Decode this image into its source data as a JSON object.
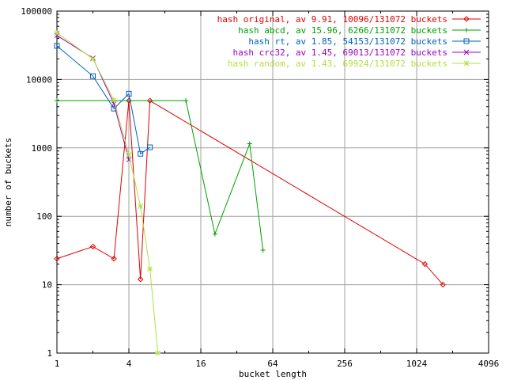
{
  "chart_data": {
    "type": "line",
    "xlabel": "bucket length",
    "ylabel": "number of buckets",
    "xscale": "log2",
    "yscale": "log10",
    "xlim": [
      1,
      4096
    ],
    "ylim": [
      1,
      100000
    ],
    "xticks": [
      1,
      4,
      16,
      64,
      256,
      1024,
      4096
    ],
    "yticks": [
      1,
      10,
      100,
      1000,
      10000,
      100000
    ],
    "xtick_labels": [
      "1",
      "4",
      "16",
      "64",
      "256",
      "1024",
      "4096"
    ],
    "ytick_labels": [
      "1",
      "10",
      "100",
      "1000",
      "10000",
      "100000"
    ],
    "grid": true,
    "legend_position": "top-right",
    "series": [
      {
        "name": "hash original, av 9.91, 10096/131072 buckets",
        "color": "#e00000",
        "marker": "diamond",
        "x": [
          1,
          2,
          3,
          4,
          5,
          6,
          1200,
          1700
        ],
        "y": [
          24,
          36,
          24,
          4900,
          12,
          4900,
          20,
          10
        ]
      },
      {
        "name": "hash abcd, av 15.96, 6266/131072 buckets",
        "color": "#00a000",
        "marker": "plus",
        "x": [
          1,
          12,
          21,
          41,
          53
        ],
        "y": [
          4900,
          4900,
          55,
          1150,
          32
        ]
      },
      {
        "name": "hash rt, av 1.85, 54153/131072 buckets",
        "color": "#0060c0",
        "marker": "square",
        "x": [
          1,
          2,
          3,
          4,
          5,
          6
        ],
        "y": [
          31000,
          11200,
          3750,
          6200,
          820,
          1020
        ]
      },
      {
        "name": "hash crc32, av 1.45, 69013/131072 buckets",
        "color": "#a000c0",
        "marker": "cross",
        "x": [
          1,
          2,
          3,
          4
        ],
        "y": [
          44000,
          20500,
          4400,
          670
        ]
      },
      {
        "name": "hash random, av 1.43, 69924/131072 buckets",
        "color": "#b0e040",
        "marker": "star",
        "x": [
          1,
          2,
          3,
          4,
          5,
          6,
          7
        ],
        "y": [
          48000,
          20000,
          5000,
          800,
          140,
          17,
          1
        ]
      }
    ]
  }
}
